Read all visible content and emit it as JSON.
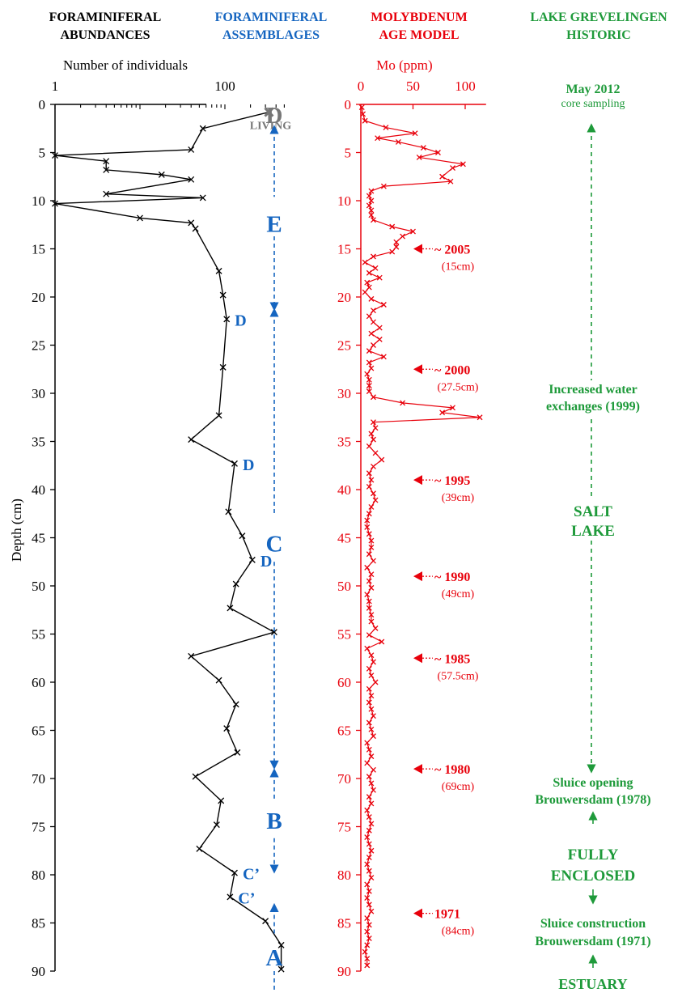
{
  "colors": {
    "black": "#000000",
    "blue": "#1565c0",
    "red": "#e8000b",
    "green": "#1e9a3a",
    "gray": "#777777"
  },
  "headers": [
    {
      "line1": "FORAMINIFERAL",
      "line2": "ABUNDANCES"
    },
    {
      "line1": "FORAMINIFERAL",
      "line2": "ASSEMBLAGES"
    },
    {
      "line1": "MOLYBDENUM",
      "line2": "AGE MODEL"
    },
    {
      "line1": "LAKE GREVELINGEN",
      "line2": "HISTORIC"
    }
  ],
  "chart_data": [
    {
      "type": "line",
      "panel": "abundances",
      "xlabel": "Number of individuals",
      "ylabel": "Depth (cm)",
      "x_scale": "log",
      "xlim": [
        1,
        500
      ],
      "ylim": [
        0,
        90
      ],
      "x_ticks": [
        "1",
        "100"
      ],
      "y_ticks": [
        "0",
        "5",
        "10",
        "15",
        "20",
        "25",
        "30",
        "35",
        "40",
        "45",
        "50",
        "55",
        "60",
        "65",
        "70",
        "75",
        "80",
        "85",
        "90"
      ],
      "series": [
        {
          "depth": [
            2.5,
            4.7,
            5.3,
            5.9,
            6.8,
            7.3,
            7.8,
            9.3,
            9.7,
            10.3,
            11.8,
            12.3,
            12.9,
            17.3,
            19.8,
            22.3,
            27.3,
            32.3,
            34.8,
            37.3,
            42.3,
            44.8,
            47.3,
            49.8,
            52.3,
            54.8,
            57.3,
            59.8,
            62.3,
            64.8,
            67.3,
            69.8,
            72.3,
            74.8,
            77.3,
            79.8,
            82.3,
            84.8,
            87.3,
            89.8
          ],
          "individuals": [
            55,
            40,
            1,
            4,
            4,
            18,
            40,
            4,
            55,
            1,
            10,
            40,
            45,
            85,
            95,
            105,
            95,
            85,
            40,
            130,
            110,
            160,
            210,
            135,
            115,
            380,
            40,
            85,
            135,
            105,
            140,
            45,
            90,
            80,
            50,
            130,
            115,
            300,
            460,
            460
          ]
        }
      ],
      "living": {
        "label": "LIVING",
        "depth": 0.3,
        "individuals": 330
      },
      "annotations": [
        {
          "text": "D",
          "depth": 22.3
        },
        {
          "text": "D",
          "depth": 37.3
        },
        {
          "text": "D",
          "depth": 47.3
        },
        {
          "text": "C’",
          "depth": 79.8
        },
        {
          "text": "C’",
          "depth": 82.3
        }
      ]
    },
    {
      "type": "line",
      "panel": "molybdenum",
      "xlabel": "Mo (ppm)",
      "xlim": [
        0,
        120
      ],
      "ylim": [
        0,
        90
      ],
      "x_ticks": [
        "0",
        "50",
        "100"
      ],
      "y_ticks": [
        "0",
        "5",
        "10",
        "15",
        "20",
        "25",
        "30",
        "35",
        "40",
        "45",
        "50",
        "55",
        "60",
        "65",
        "70",
        "75",
        "80",
        "85",
        "90"
      ],
      "series": [
        {
          "depth": [
            0.3,
            1,
            1.7,
            2.4,
            3,
            3.5,
            3.9,
            4.5,
            5,
            5.5,
            6.2,
            6.6,
            7.5,
            8,
            8.5,
            9,
            9.5,
            10,
            10.5,
            11,
            11.5,
            12,
            12.7,
            13.2,
            13.7,
            14.3,
            14.8,
            15.3,
            15.8,
            16.4,
            17,
            17.5,
            18,
            18.5,
            19,
            19.5,
            20.2,
            20.8,
            21.4,
            22,
            22.6,
            23.2,
            23.8,
            24.4,
            25,
            25.6,
            26.2,
            26.8,
            27.4,
            28,
            28.6,
            29.2,
            29.8,
            30.4,
            31,
            31.5,
            32,
            32.5,
            33,
            33.6,
            34.2,
            34.8,
            35.5,
            36.2,
            36.9,
            37.6,
            38.3,
            39,
            39.7,
            40.4,
            41.1,
            41.8,
            42.5,
            43.2,
            43.9,
            44.6,
            45.3,
            46,
            46.7,
            47.4,
            48.1,
            48.8,
            49.5,
            50.2,
            50.9,
            51.6,
            52.3,
            53,
            53.7,
            54.4,
            55.1,
            55.8,
            56.5,
            57.2,
            57.9,
            58.6,
            59.3,
            60,
            60.7,
            61.4,
            62.1,
            62.8,
            63.5,
            64.2,
            64.9,
            65.6,
            66.3,
            67,
            67.7,
            68.4,
            69.1,
            69.8,
            70.5,
            71.2,
            71.9,
            72.6,
            73.3,
            74,
            74.7,
            75.4,
            76.1,
            76.8,
            77.5,
            78.2,
            78.9,
            79.6,
            80.3,
            81,
            81.7,
            82.4,
            83.1,
            83.8,
            84.5,
            85.2,
            85.9,
            86.6,
            87.3,
            88,
            88.7,
            89.4
          ],
          "mo_ppm": [
            1,
            2,
            4,
            24,
            52,
            16,
            36,
            60,
            74,
            56,
            98,
            88,
            78,
            86,
            22,
            10,
            8,
            10,
            8,
            10,
            10,
            12,
            30,
            50,
            40,
            34,
            34,
            30,
            12,
            4,
            14,
            8,
            18,
            6,
            8,
            4,
            10,
            22,
            12,
            8,
            12,
            18,
            10,
            18,
            12,
            8,
            22,
            8,
            10,
            6,
            8,
            8,
            8,
            12,
            40,
            88,
            78,
            114,
            12,
            14,
            10,
            12,
            8,
            14,
            20,
            12,
            8,
            10,
            8,
            12,
            14,
            10,
            8,
            6,
            6,
            8,
            10,
            10,
            8,
            12,
            6,
            10,
            8,
            10,
            6,
            8,
            8,
            10,
            10,
            14,
            8,
            20,
            6,
            10,
            12,
            8,
            10,
            14,
            8,
            10,
            8,
            10,
            12,
            8,
            10,
            12,
            6,
            8,
            10,
            6,
            12,
            8,
            10,
            12,
            8,
            10,
            6,
            8,
            10,
            8,
            6,
            8,
            10,
            8,
            6,
            8,
            10,
            6,
            8,
            6,
            8,
            10,
            6,
            8,
            6,
            8,
            6,
            4,
            6,
            6,
            6,
            6
          ]
        }
      ],
      "age_markers": [
        {
          "label": "~ 2005",
          "sub": "(15cm)",
          "depth": 15
        },
        {
          "label": "~ 2000",
          "sub": "(27.5cm)",
          "depth": 27.5
        },
        {
          "label": "~ 1995",
          "sub": "(39cm)",
          "depth": 39
        },
        {
          "label": "~ 1990",
          "sub": "(49cm)",
          "depth": 49
        },
        {
          "label": "~ 1985",
          "sub": "(57.5cm)",
          "depth": 57.5
        },
        {
          "label": "~ 1980",
          "sub": "(69cm)",
          "depth": 69
        },
        {
          "label": "1971",
          "sub": "(84cm)",
          "depth": 84
        }
      ]
    }
  ],
  "assemblages": [
    {
      "label": "D",
      "depth": 1,
      "color": "gray"
    },
    {
      "label": "E",
      "depth": 12.3
    },
    {
      "label": "C",
      "depth": 45.5
    },
    {
      "label": "B",
      "depth": 74.3
    },
    {
      "label": "A",
      "depth": 88.5
    }
  ],
  "historic": {
    "top_title": "May 2012",
    "top_sub": "core sampling",
    "increased_1": "Increased water",
    "increased_2": "exchanges (1999)",
    "salt_1": "SALT",
    "salt_2": "LAKE",
    "sluice_open_1": "Sluice opening",
    "sluice_open_2": "Brouwersdam (1978)",
    "fully_1": "FULLY",
    "fully_2": "ENCLOSED",
    "sluice_con_1": "Sluice construction",
    "sluice_con_2": "Brouwersdam (1971)",
    "estuary": "ESTUARY"
  }
}
